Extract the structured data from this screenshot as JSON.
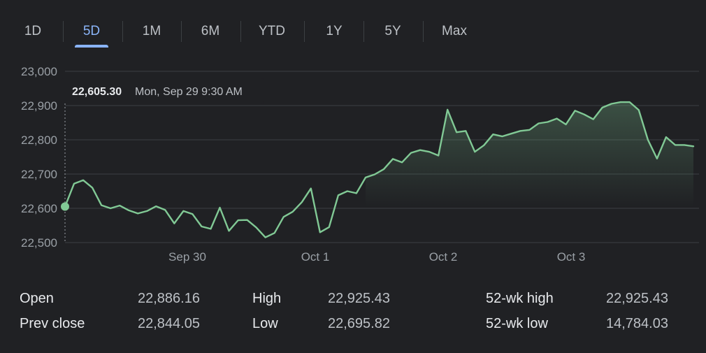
{
  "tabs": [
    {
      "label": "1D",
      "active": false
    },
    {
      "label": "5D",
      "active": true
    },
    {
      "label": "1M",
      "active": false
    },
    {
      "label": "6M",
      "active": false
    },
    {
      "label": "YTD",
      "active": false
    },
    {
      "label": "1Y",
      "active": false
    },
    {
      "label": "5Y",
      "active": false
    },
    {
      "label": "Max",
      "active": false
    }
  ],
  "tooltip": {
    "value": "22,605.30",
    "time": "Mon, Sep 29 9:30 AM"
  },
  "colors": {
    "line": "#81c995",
    "accent": "#8ab4f8",
    "grid": "#3c4043",
    "background": "#202124"
  },
  "chart_data": {
    "type": "line",
    "xlabels": [
      "Sep 30",
      "Oct 1",
      "Oct 2",
      "Oct 3"
    ],
    "ylim": [
      22500,
      23000
    ],
    "yticks": [
      "23,000",
      "22,900",
      "22,800",
      "22,700",
      "22,600",
      "22,500"
    ],
    "grid": true,
    "values": [
      22605,
      22672,
      22682,
      22660,
      22609,
      22600,
      22608,
      22594,
      22585,
      22592,
      22606,
      22595,
      22556,
      22592,
      22583,
      22547,
      22540,
      22602,
      22534,
      22565,
      22566,
      22544,
      22515,
      22528,
      22575,
      22590,
      22618,
      22658,
      22530,
      22545,
      22638,
      22650,
      22644,
      22690,
      22699,
      22714,
      22744,
      22734,
      22762,
      22770,
      22765,
      22754,
      22888,
      22822,
      22826,
      22765,
      22784,
      22816,
      22810,
      22818,
      22826,
      22829,
      22848,
      22852,
      22862,
      22845,
      22885,
      22874,
      22860,
      22894,
      22905,
      22910,
      22910,
      22887,
      22800,
      22745,
      22808,
      22785,
      22785,
      22781
    ]
  },
  "stats": {
    "open_label": "Open",
    "open_value": "22,886.16",
    "prev_close_label": "Prev close",
    "prev_close_value": "22,844.05",
    "high_label": "High",
    "high_value": "22,925.43",
    "low_label": "Low",
    "low_value": "22,695.82",
    "wk52_high_label": "52-wk high",
    "wk52_high_value": "22,925.43",
    "wk52_low_label": "52-wk low",
    "wk52_low_value": "14,784.03"
  }
}
